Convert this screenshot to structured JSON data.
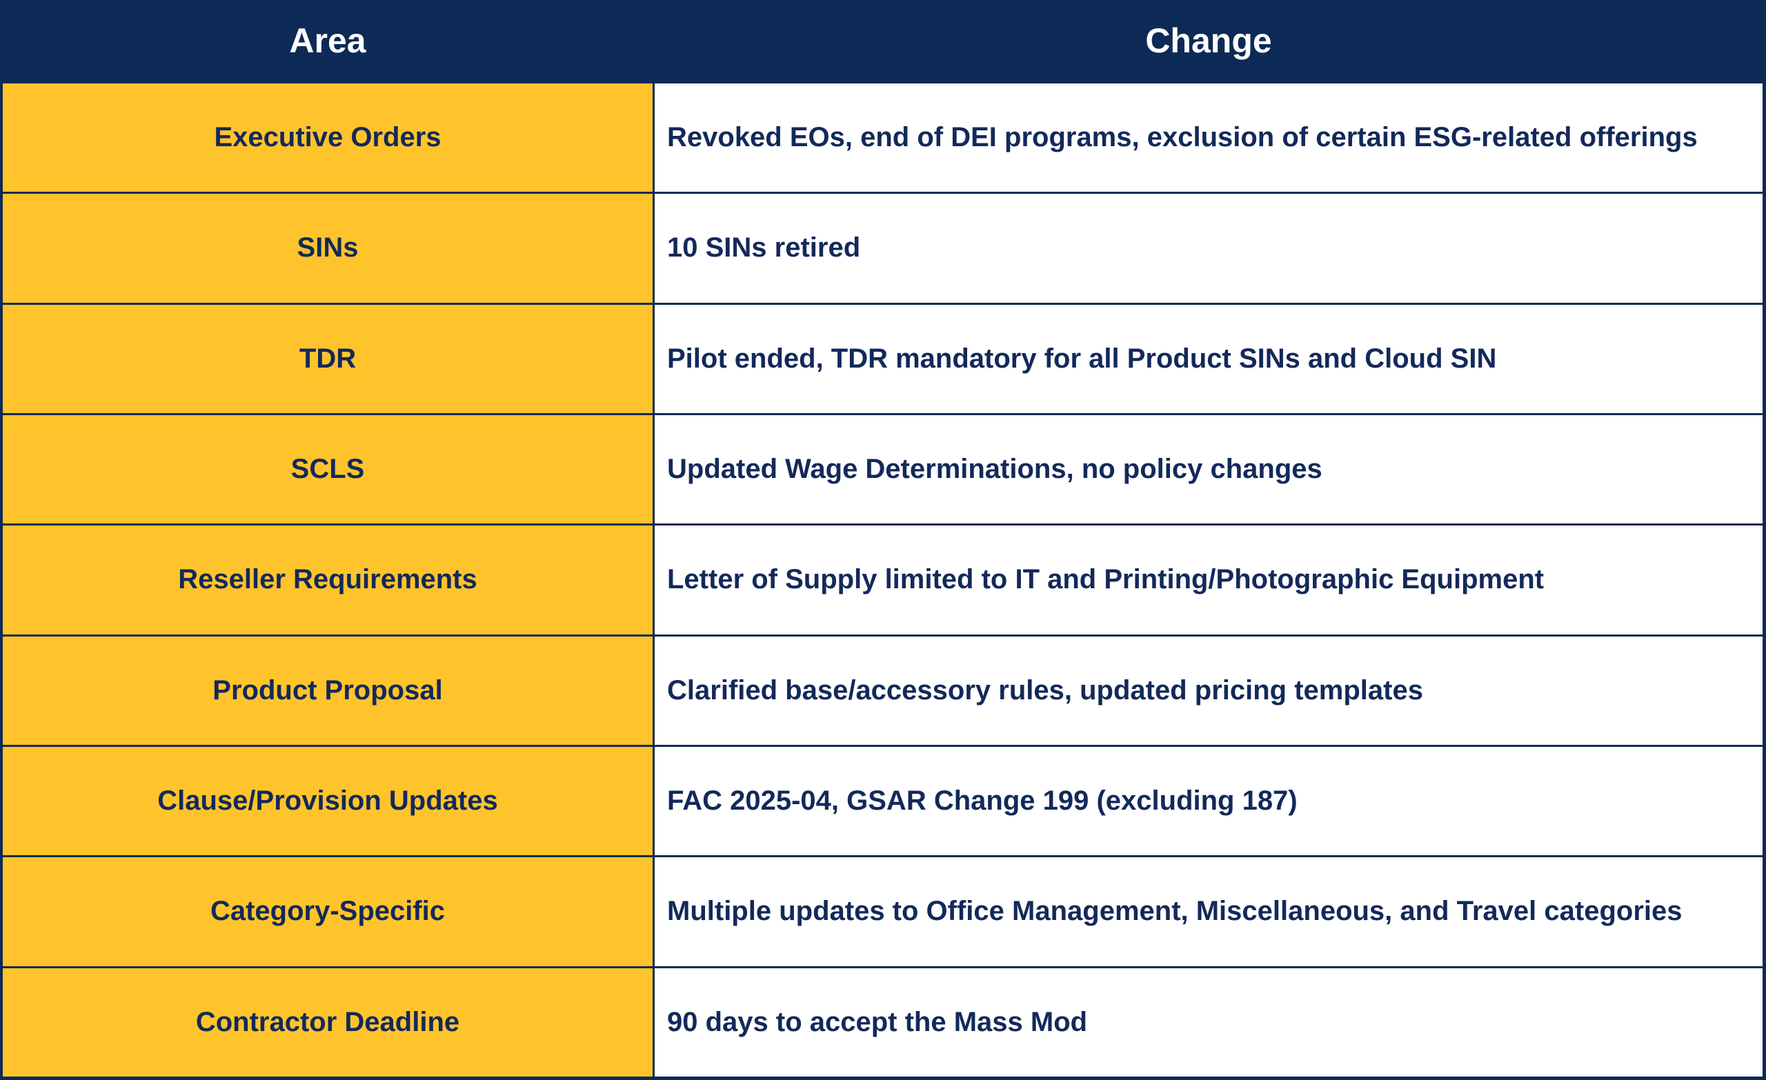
{
  "colors": {
    "navy": "#0d2a56",
    "gold": "#ffc42c",
    "header_text": "#ffffff",
    "body_text": "#13295a"
  },
  "table": {
    "columns": [
      "Area",
      "Change"
    ],
    "rows": [
      {
        "area": "Executive Orders",
        "change": "Revoked EOs, end of DEI programs, exclusion of certain ESG-related offerings"
      },
      {
        "area": "SINs",
        "change": "10 SINs retired"
      },
      {
        "area": "TDR",
        "change": "Pilot ended, TDR mandatory for all Product SINs and Cloud SIN"
      },
      {
        "area": "SCLS",
        "change": "Updated Wage Determinations, no policy changes"
      },
      {
        "area": "Reseller Requirements",
        "change": "Letter of Supply limited to IT and Printing/Photographic Equipment"
      },
      {
        "area": "Product Proposal",
        "change": "Clarified base/accessory rules, updated pricing templates"
      },
      {
        "area": "Clause/Provision Updates",
        "change": "FAC 2025-04, GSAR Change 199 (excluding 187)"
      },
      {
        "area": "Category-Specific",
        "change": "Multiple updates to Office Management, Miscellaneous, and Travel categories"
      },
      {
        "area": "Contractor Deadline",
        "change": "90 days to accept the Mass Mod"
      }
    ]
  }
}
